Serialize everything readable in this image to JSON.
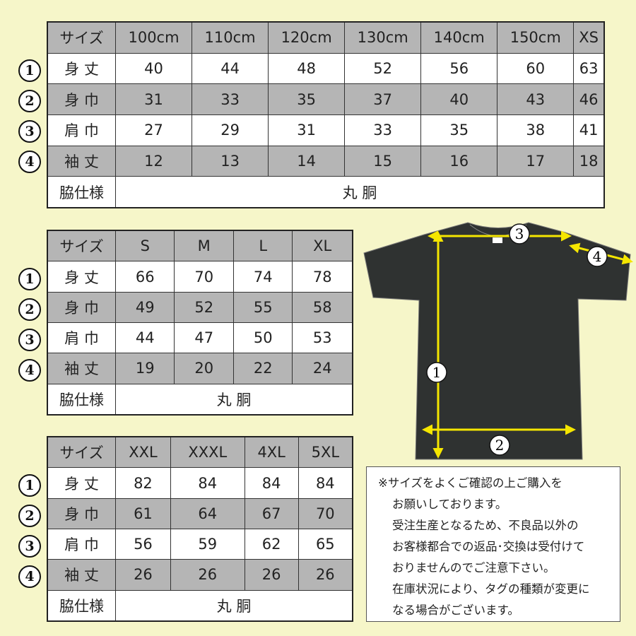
{
  "row_numbers": [
    "①",
    "②",
    "③",
    "④"
  ],
  "row_labels": {
    "size": "サイズ",
    "length": "身 丈",
    "width": "身 巾",
    "shoulder": "肩 巾",
    "sleeve": "袖 丈",
    "side": "脇仕様"
  },
  "tables": [
    {
      "sizes": [
        "100cm",
        "110cm",
        "120cm",
        "130cm",
        "140cm",
        "150cm",
        "XS"
      ],
      "length": [
        "40",
        "44",
        "48",
        "52",
        "56",
        "60",
        "63"
      ],
      "width": [
        "31",
        "33",
        "35",
        "37",
        "40",
        "43",
        "46"
      ],
      "shoulder": [
        "27",
        "29",
        "31",
        "33",
        "35",
        "38",
        "41"
      ],
      "sleeve": [
        "12",
        "13",
        "14",
        "15",
        "16",
        "17",
        "18"
      ],
      "side": "丸 胴"
    },
    {
      "sizes": [
        "S",
        "M",
        "L",
        "XL"
      ],
      "length": [
        "66",
        "70",
        "74",
        "78"
      ],
      "width": [
        "49",
        "52",
        "55",
        "58"
      ],
      "shoulder": [
        "44",
        "47",
        "50",
        "53"
      ],
      "sleeve": [
        "19",
        "20",
        "22",
        "24"
      ],
      "side": "丸 胴"
    },
    {
      "sizes": [
        "XXL",
        "XXXL",
        "4XL",
        "5XL"
      ],
      "length": [
        "82",
        "84",
        "84",
        "84"
      ],
      "width": [
        "61",
        "64",
        "67",
        "70"
      ],
      "shoulder": [
        "56",
        "59",
        "62",
        "65"
      ],
      "sleeve": [
        "26",
        "26",
        "26",
        "26"
      ],
      "side": "丸 胴"
    }
  ],
  "diagram": {
    "markers": [
      "1",
      "2",
      "3",
      "4"
    ],
    "shirt_color": "#2f3231",
    "arrow_color": "#f5e600"
  },
  "note": {
    "lines": [
      "※サイズをよくご確認の上ご購入を",
      "お願いしております。",
      "受注生産となるため、不良品以外の",
      "お客様都合での返品･交換は受付けて",
      "おりませんのでご注意下さい。",
      "在庫状況により、タグの種類が変更に",
      "なる場合がございます。"
    ]
  }
}
